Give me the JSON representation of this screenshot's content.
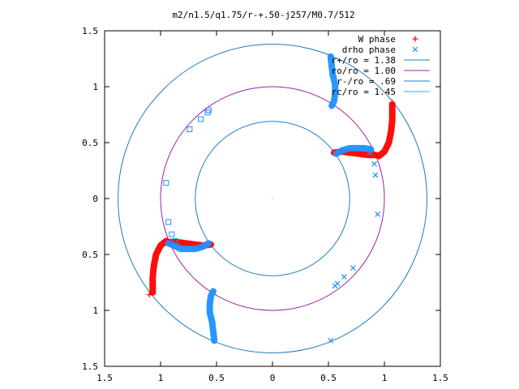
{
  "chart_data": {
    "type": "scatter",
    "title": "m2/n1.5/q1.75/r-+.50-j257/M0.7/512",
    "xlim": [
      -1.5,
      1.5
    ],
    "ylim": [
      -1.5,
      1.5
    ],
    "x_tick_values": [
      -1.5,
      -1,
      -0.5,
      0,
      0.5,
      1,
      1.5
    ],
    "x_tick_labels": [
      "1.5",
      "1",
      "0.5",
      "0",
      "0.5",
      "1",
      "1.5"
    ],
    "y_tick_values": [
      1.5,
      1,
      0.5,
      0,
      -0.5,
      -1,
      -1.5
    ],
    "y_tick_labels": [
      "1.5",
      "1",
      "0.5",
      "0",
      "0.5",
      "1",
      "1.5"
    ],
    "grid": false,
    "legend_position": "top-right",
    "series": [
      {
        "name": "W phase",
        "marker": "plus",
        "color": "#ff0000",
        "segments": [
          [
            [
              0.95,
              0.38
            ],
            [
              1.0,
              0.42
            ],
            [
              1.04,
              0.5
            ],
            [
              1.06,
              0.6
            ],
            [
              1.07,
              0.7
            ],
            [
              1.07,
              0.78
            ],
            [
              1.07,
              0.84
            ]
          ],
          [
            [
              -0.95,
              -0.38
            ],
            [
              -1.0,
              -0.42
            ],
            [
              -1.04,
              -0.5
            ],
            [
              -1.06,
              -0.6
            ],
            [
              -1.07,
              -0.7
            ],
            [
              -1.07,
              -0.78
            ],
            [
              -1.07,
              -0.84
            ]
          ],
          [
            [
              0.55,
              0.41
            ],
            [
              0.62,
              0.42
            ],
            [
              0.7,
              0.41
            ],
            [
              0.78,
              0.4
            ],
            [
              0.85,
              0.39
            ],
            [
              0.92,
              0.39
            ]
          ],
          [
            [
              -0.55,
              -0.41
            ],
            [
              -0.62,
              -0.42
            ],
            [
              -0.7,
              -0.41
            ],
            [
              -0.78,
              -0.4
            ],
            [
              -0.85,
              -0.39
            ],
            [
              -0.92,
              -0.39
            ]
          ]
        ],
        "points": [
          [
            1.07,
            0.86
          ],
          [
            -1.1,
            -0.86
          ]
        ]
      },
      {
        "name": "drho phase",
        "marker": "cross",
        "color": "#1e90ff",
        "segments": [
          [
            [
              0.52,
              1.27
            ],
            [
              0.53,
              1.18
            ],
            [
              0.54,
              1.1
            ],
            [
              0.56,
              1.02
            ],
            [
              0.56,
              0.94
            ],
            [
              0.55,
              0.87
            ],
            [
              0.53,
              0.83
            ]
          ],
          [
            [
              -0.52,
              -1.27
            ],
            [
              -0.53,
              -1.18
            ],
            [
              -0.54,
              -1.1
            ],
            [
              -0.56,
              -1.02
            ],
            [
              -0.56,
              -0.94
            ],
            [
              -0.55,
              -0.87
            ],
            [
              -0.53,
              -0.83
            ]
          ],
          [
            [
              0.57,
              0.4
            ],
            [
              0.62,
              0.43
            ],
            [
              0.69,
              0.45
            ],
            [
              0.76,
              0.45
            ],
            [
              0.82,
              0.45
            ],
            [
              0.88,
              0.44
            ]
          ],
          [
            [
              -0.57,
              -0.4
            ],
            [
              -0.62,
              -0.43
            ],
            [
              -0.69,
              -0.45
            ],
            [
              -0.76,
              -0.45
            ],
            [
              -0.82,
              -0.45
            ],
            [
              -0.88,
              -0.42
            ],
            [
              -0.93,
              -0.4
            ]
          ]
        ],
        "points": [
          [
            0.87,
            0.41
          ],
          [
            0.91,
            0.31
          ],
          [
            0.92,
            0.21
          ],
          [
            0.94,
            -0.14
          ],
          [
            0.72,
            -0.62
          ],
          [
            0.64,
            -0.7
          ],
          [
            0.58,
            -0.76
          ],
          [
            0.56,
            -0.78
          ],
          [
            0.52,
            -1.27
          ]
        ],
        "square_points": [
          [
            -0.57,
            0.79
          ],
          [
            -0.58,
            0.77
          ],
          [
            -0.64,
            0.71
          ],
          [
            -0.74,
            0.62
          ],
          [
            -0.95,
            0.14
          ],
          [
            -0.93,
            -0.21
          ],
          [
            -0.9,
            -0.32
          ],
          [
            -0.87,
            -0.38
          ]
        ]
      },
      {
        "name": "r+/ro = 1.38",
        "type": "circle",
        "radius": 1.38,
        "color": "#1e7bc0"
      },
      {
        "name": "ro/ro = 1.00",
        "type": "circle",
        "radius": 1.0,
        "color": "#a020a0"
      },
      {
        "name": "r-/ro = .69",
        "type": "circle",
        "radius": 0.69,
        "color": "#1e7bc0"
      },
      {
        "name": "rc/ro = 1.45",
        "type": "circle",
        "radius": 1.45,
        "color": "#2fb0c8",
        "visible_circle": false
      }
    ]
  }
}
